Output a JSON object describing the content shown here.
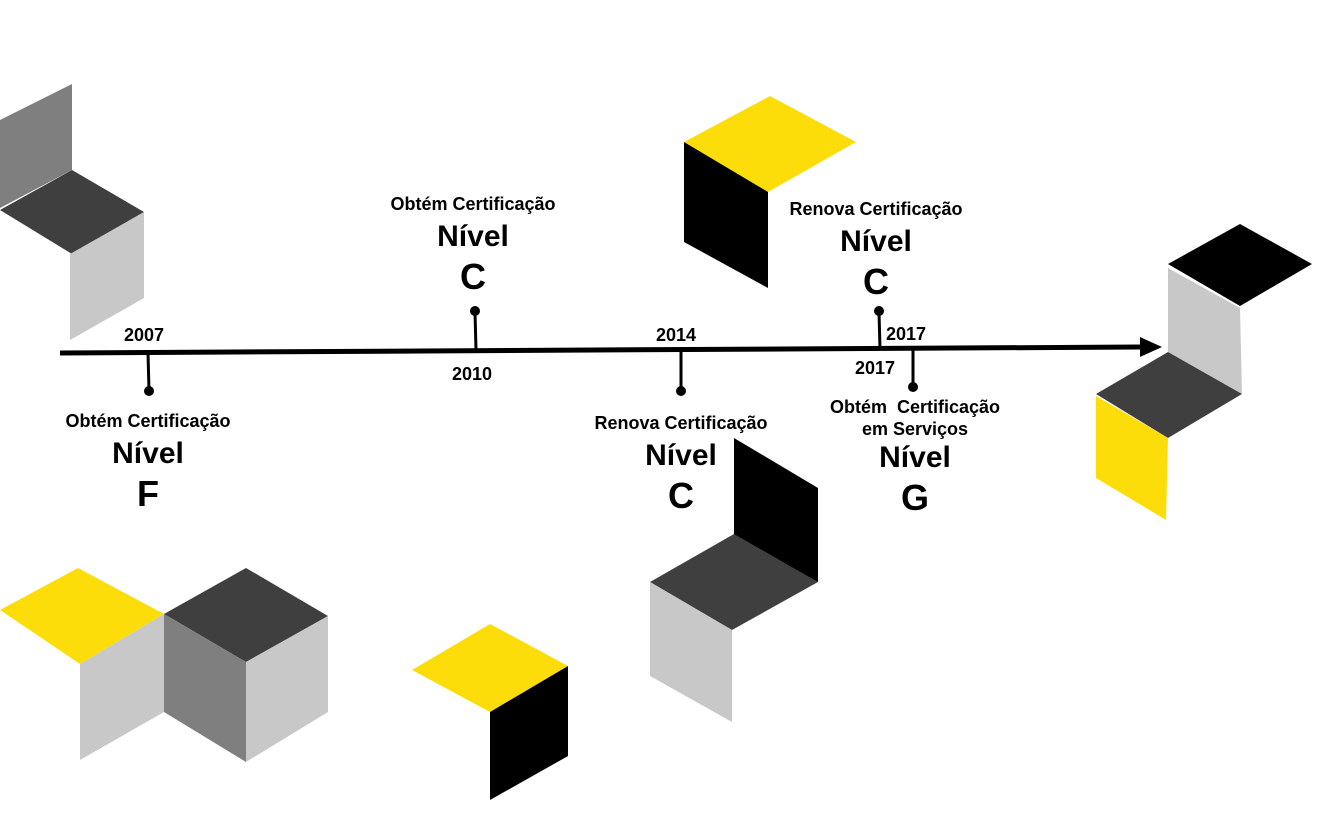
{
  "colors": {
    "yellow": "#FCDD0A",
    "black": "#000000",
    "dark": "#3F3F3F",
    "mid": "#7F7F7F",
    "light": "#C8C8C8"
  },
  "events": [
    {
      "year": "2007",
      "caption": "Obtém Certificação",
      "level_word": "Nível",
      "level": "F"
    },
    {
      "year": "2010",
      "caption": "Obtém Certificação",
      "level_word": "Nível",
      "level": "C"
    },
    {
      "year": "2014",
      "caption": "Renova Certificação",
      "level_word": "Nível",
      "level": "C"
    },
    {
      "year": "2017",
      "caption": "Renova Certificação",
      "level_word": "Nível",
      "level": "C"
    },
    {
      "year": "2017",
      "caption": "Obtém  Certificação",
      "caption2": "em Serviços",
      "level_word": "Nível",
      "level": "G"
    }
  ]
}
